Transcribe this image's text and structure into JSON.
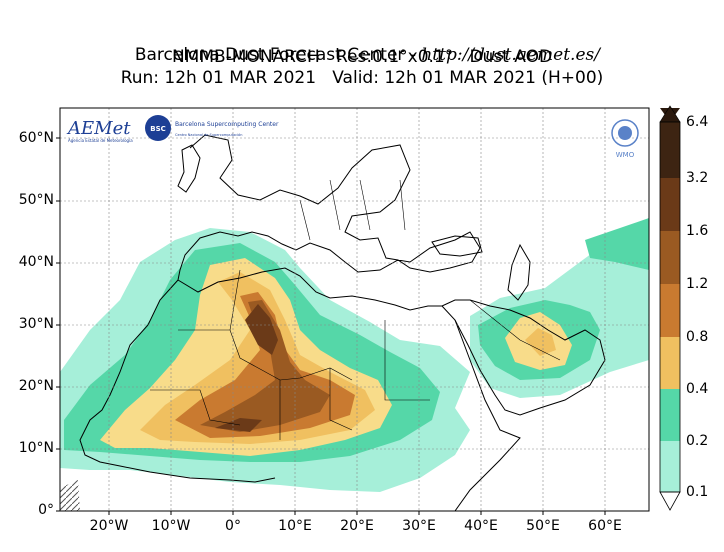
{
  "header": {
    "line1_prefix": "Barcelona Dust Forecast Center - ",
    "line1_url": "http://dust.aemet.es/",
    "line2": "NMMB-MONARCH   Res:0.1°x0.1°   Dust AOD",
    "line3": "Run: 12h 01 MAR 2021   Valid: 12h 01 MAR 2021 (H+00)"
  },
  "axes": {
    "lat_labels": [
      "60°N",
      "50°N",
      "40°N",
      "30°N",
      "20°N",
      "10°N",
      "0°"
    ],
    "lon_labels": [
      "20°W",
      "10°W",
      "0°",
      "10°E",
      "20°E",
      "30°E",
      "40°E",
      "50°E",
      "60°E"
    ]
  },
  "colorbar": {
    "labels": [
      "6.4",
      "3.2",
      "1.6",
      "1.2",
      "0.8",
      "0.4",
      "0.2",
      "0.1"
    ],
    "colors": [
      "#3d2412",
      "#6b3a18",
      "#9a5a22",
      "#c97a30",
      "#f0c060",
      "#f8dc8a",
      "#55d7a8",
      "#a6efd9"
    ]
  },
  "logos": {
    "aemet_text": "AEMet",
    "aemet_sub": "Agencia Estatal de Meteorología",
    "bsc_badge": "BSC",
    "bsc_text": "Barcelona Supercomputing Center",
    "bsc_sub": "Centro Nacional de Supercomputación",
    "wmo_text": "WMO"
  }
}
